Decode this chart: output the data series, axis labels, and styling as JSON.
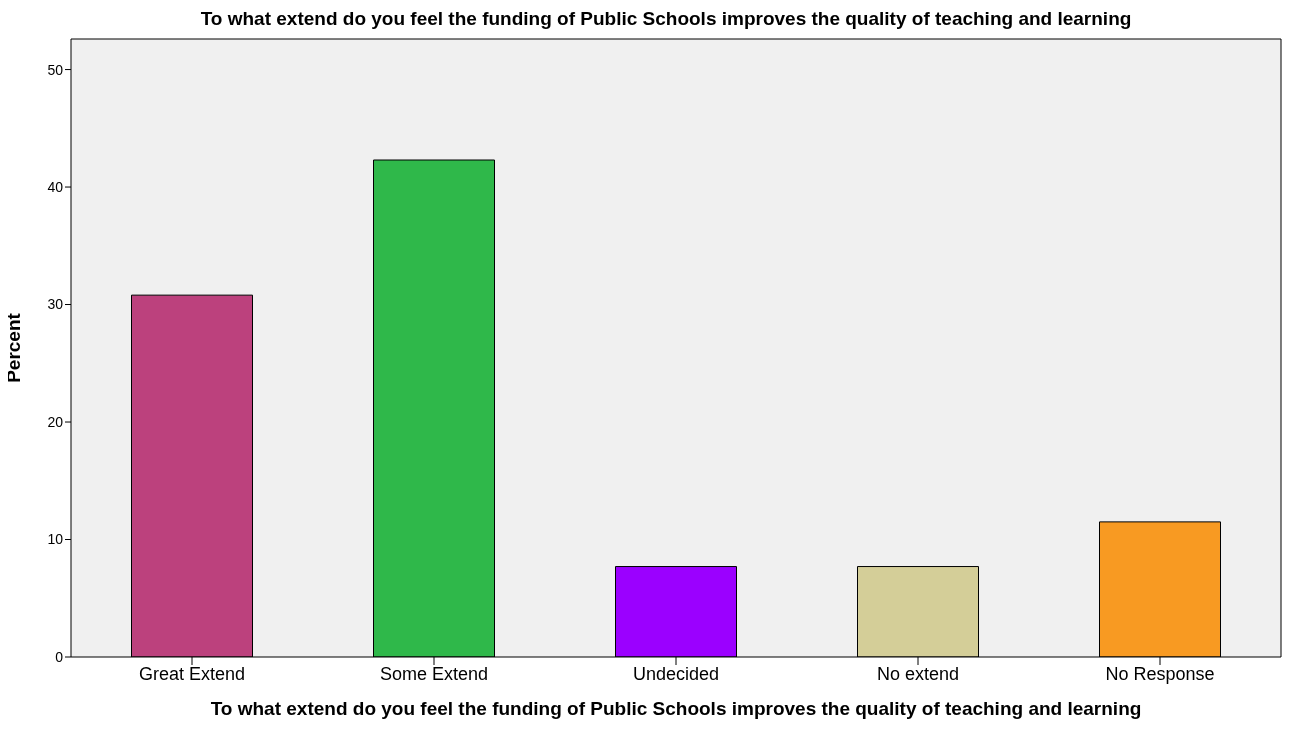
{
  "chart_data": {
    "type": "bar",
    "title": "To what extend do you feel the funding of Public Schools improves the quality of teaching and learning",
    "xlabel": "To what extend do you feel the funding of Public Schools improves the quality of teaching and learning",
    "ylabel": "Percent",
    "categories": [
      "Great Extend",
      "Some Extend",
      "Undecided",
      "No extend",
      "No Response"
    ],
    "values": [
      30.8,
      42.3,
      7.7,
      7.7,
      11.5
    ],
    "colors": [
      "#bc417d",
      "#2fb84a",
      "#9b00ff",
      "#d4ce98",
      "#f89a22"
    ],
    "ylim": [
      0,
      52.6
    ],
    "yticks": [
      0,
      10,
      20,
      30,
      40,
      50
    ],
    "legend": false
  }
}
